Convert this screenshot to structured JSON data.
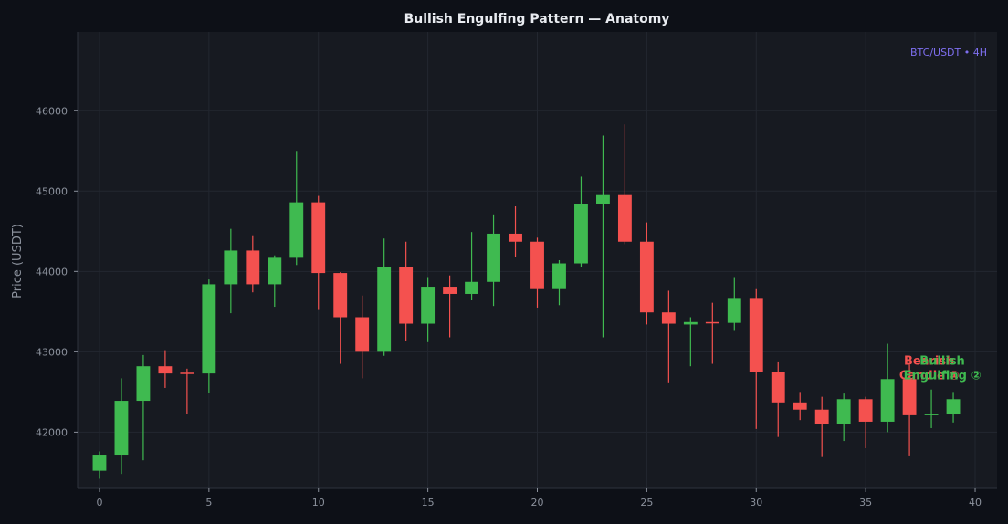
{
  "colors": {
    "background": "#0d1017",
    "plot_background": "#171a21",
    "grid": "#232730",
    "axis_text": "#8b919c",
    "title_text": "#e9ecf1",
    "bull": "#3fba50",
    "bear": "#f4514f",
    "symbol_text": "#7e6ff0"
  },
  "chart_data": {
    "type": "candlestick",
    "title": "Bullish Engulfing Pattern — Anatomy",
    "symbol_label": "BTC/USDT • 4H",
    "xlabel": "",
    "ylabel": "Price (USDT)",
    "xlim": [
      -1,
      41
    ],
    "ylim": [
      41300,
      46980
    ],
    "x_ticks": [
      0,
      5,
      10,
      15,
      20,
      25,
      30,
      35,
      40
    ],
    "y_ticks": [
      42000,
      43000,
      44000,
      45000,
      46000
    ],
    "grid": true,
    "candles": [
      {
        "x": 0,
        "open": 41520,
        "high": 41760,
        "low": 41420,
        "close": 41720
      },
      {
        "x": 1,
        "open": 41720,
        "high": 42670,
        "low": 41480,
        "close": 42390
      },
      {
        "x": 2,
        "open": 42390,
        "high": 42960,
        "low": 41650,
        "close": 42820
      },
      {
        "x": 3,
        "open": 42820,
        "high": 43020,
        "low": 42550,
        "close": 42730
      },
      {
        "x": 4,
        "open": 42740,
        "high": 42790,
        "low": 42230,
        "close": 42730
      },
      {
        "x": 5,
        "open": 42730,
        "high": 43900,
        "low": 42490,
        "close": 43840
      },
      {
        "x": 6,
        "open": 43840,
        "high": 44530,
        "low": 43480,
        "close": 44260
      },
      {
        "x": 7,
        "open": 44260,
        "high": 44450,
        "low": 43740,
        "close": 43840
      },
      {
        "x": 8,
        "open": 43840,
        "high": 44200,
        "low": 43560,
        "close": 44170
      },
      {
        "x": 9,
        "open": 44170,
        "high": 45500,
        "low": 44080,
        "close": 44860
      },
      {
        "x": 10,
        "open": 44860,
        "high": 44940,
        "low": 43520,
        "close": 43980
      },
      {
        "x": 11,
        "open": 43980,
        "high": 43990,
        "low": 42850,
        "close": 43430
      },
      {
        "x": 12,
        "open": 43430,
        "high": 43700,
        "low": 42670,
        "close": 43000
      },
      {
        "x": 13,
        "open": 43000,
        "high": 44410,
        "low": 42950,
        "close": 44050
      },
      {
        "x": 14,
        "open": 44050,
        "high": 44370,
        "low": 43140,
        "close": 43350
      },
      {
        "x": 15,
        "open": 43350,
        "high": 43930,
        "low": 43120,
        "close": 43810
      },
      {
        "x": 16,
        "open": 43810,
        "high": 43950,
        "low": 43180,
        "close": 43720
      },
      {
        "x": 17,
        "open": 43720,
        "high": 44490,
        "low": 43640,
        "close": 43870
      },
      {
        "x": 18,
        "open": 43870,
        "high": 44710,
        "low": 43570,
        "close": 44470
      },
      {
        "x": 19,
        "open": 44470,
        "high": 44810,
        "low": 44180,
        "close": 44370
      },
      {
        "x": 20,
        "open": 44370,
        "high": 44420,
        "low": 43550,
        "close": 43780
      },
      {
        "x": 21,
        "open": 43780,
        "high": 44140,
        "low": 43580,
        "close": 44100
      },
      {
        "x": 22,
        "open": 44100,
        "high": 45180,
        "low": 44060,
        "close": 44840
      },
      {
        "x": 23,
        "open": 44840,
        "high": 45690,
        "low": 43180,
        "close": 44950
      },
      {
        "x": 24,
        "open": 44950,
        "high": 45830,
        "low": 44340,
        "close": 44370
      },
      {
        "x": 25,
        "open": 44370,
        "high": 44610,
        "low": 43340,
        "close": 43490
      },
      {
        "x": 26,
        "open": 43490,
        "high": 43760,
        "low": 42620,
        "close": 43350
      },
      {
        "x": 27,
        "open": 43340,
        "high": 43430,
        "low": 42820,
        "close": 43370
      },
      {
        "x": 28,
        "open": 43370,
        "high": 43610,
        "low": 42850,
        "close": 43360
      },
      {
        "x": 29,
        "open": 43360,
        "high": 43930,
        "low": 43260,
        "close": 43670
      },
      {
        "x": 30,
        "open": 43670,
        "high": 43780,
        "low": 42040,
        "close": 42750
      },
      {
        "x": 31,
        "open": 42750,
        "high": 42880,
        "low": 41940,
        "close": 42370
      },
      {
        "x": 32,
        "open": 42370,
        "high": 42500,
        "low": 42150,
        "close": 42280
      },
      {
        "x": 33,
        "open": 42280,
        "high": 42440,
        "low": 41690,
        "close": 42100
      },
      {
        "x": 34,
        "open": 42100,
        "high": 42480,
        "low": 41890,
        "close": 42410
      },
      {
        "x": 35,
        "open": 42410,
        "high": 42440,
        "low": 41800,
        "close": 42130
      },
      {
        "x": 36,
        "open": 42130,
        "high": 43100,
        "low": 42000,
        "close": 42660
      },
      {
        "x": 37,
        "open": 42660,
        "high": 42840,
        "low": 41710,
        "close": 42210
      },
      {
        "x": 38,
        "open": 42210,
        "high": 42530,
        "low": 42050,
        "close": 42230
      },
      {
        "x": 39,
        "open": 42220,
        "high": 42500,
        "low": 42120,
        "close": 42410
      }
    ],
    "annotations": [
      {
        "text_lines": [
          "Bearish",
          "Candle ①"
        ],
        "x": 37.9,
        "y": 42840,
        "color_key": "bear"
      },
      {
        "text_lines": [
          "Bullish",
          "Engulfing ②"
        ],
        "x": 38.5,
        "y": 42840,
        "color_key": "bull"
      }
    ]
  }
}
